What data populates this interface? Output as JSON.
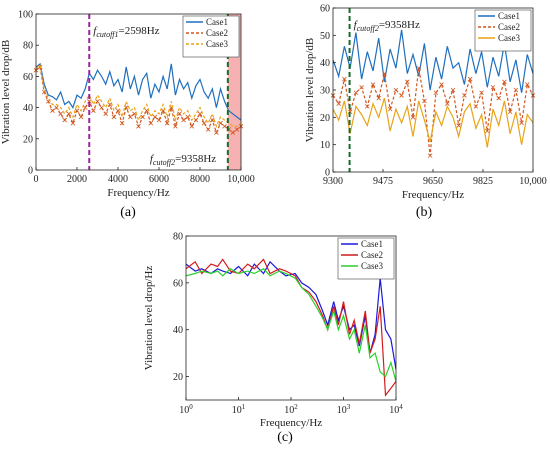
{
  "chart_data": [
    {
      "panel_label": "(a)",
      "type": "line",
      "xlabel": "Frequency/Hz",
      "ylabel": "Vibration level drop/dB",
      "xlim": [
        0,
        10000
      ],
      "ylim": [
        0,
        100
      ],
      "x_ticks": [
        0,
        2000,
        4000,
        6000,
        8000,
        10000
      ],
      "x_tick_labels": [
        "0",
        "2000",
        "4000",
        "6000",
        "8000",
        "10,000"
      ],
      "y_ticks": [
        0,
        20,
        40,
        60,
        80,
        100
      ],
      "legend": "top-right",
      "annotations": {
        "cutoff1": {
          "prefix": "f",
          "sub": "cutoff1",
          "suffix": "=2598Hz",
          "x": 2598
        },
        "cutoff2": {
          "prefix": "f",
          "sub": "cutoff2",
          "suffix": "=9358Hz",
          "x": 9358
        }
      },
      "shaded_region": [
        9358,
        10000
      ],
      "series": [
        {
          "name": "Case1",
          "color": "#1f6fbf",
          "style": "solid",
          "x": [
            0,
            200,
            400,
            600,
            800,
            1000,
            1200,
            1400,
            1600,
            1800,
            2000,
            2200,
            2400,
            2600,
            2800,
            3000,
            3200,
            3400,
            3600,
            3800,
            4000,
            4200,
            4400,
            4600,
            4800,
            5000,
            5200,
            5400,
            5600,
            5800,
            6000,
            6200,
            6400,
            6600,
            6800,
            7000,
            7200,
            7400,
            7600,
            7800,
            8000,
            8200,
            8400,
            8600,
            8800,
            9000,
            9200,
            9400,
            9600,
            9800,
            10000
          ],
          "y": [
            66,
            68,
            55,
            48,
            47,
            45,
            50,
            42,
            44,
            40,
            48,
            46,
            52,
            62,
            58,
            64,
            60,
            55,
            63,
            54,
            58,
            50,
            66,
            52,
            60,
            48,
            58,
            62,
            46,
            55,
            50,
            60,
            52,
            68,
            48,
            58,
            52,
            56,
            46,
            54,
            58,
            50,
            46,
            52,
            40,
            52,
            44,
            38,
            36,
            34,
            32
          ]
        },
        {
          "name": "Case2",
          "color": "#d2571f",
          "style": "dash-x",
          "x": [
            0,
            200,
            400,
            600,
            800,
            1000,
            1200,
            1400,
            1600,
            1800,
            2000,
            2200,
            2400,
            2600,
            2800,
            3000,
            3200,
            3400,
            3600,
            3800,
            4000,
            4200,
            4400,
            4600,
            4800,
            5000,
            5200,
            5400,
            5600,
            5800,
            6000,
            6200,
            6400,
            6600,
            6800,
            7000,
            7200,
            7400,
            7600,
            7800,
            8000,
            8200,
            8400,
            8600,
            8800,
            9000,
            9200,
            9400,
            9600,
            9800,
            10000
          ],
          "y": [
            64,
            66,
            50,
            44,
            38,
            40,
            36,
            32,
            36,
            30,
            38,
            34,
            40,
            44,
            38,
            44,
            40,
            36,
            42,
            34,
            38,
            30,
            40,
            34,
            36,
            28,
            34,
            38,
            30,
            34,
            32,
            38,
            30,
            40,
            28,
            36,
            32,
            34,
            28,
            32,
            36,
            30,
            26,
            32,
            24,
            30,
            28,
            26,
            24,
            26,
            28
          ]
        },
        {
          "name": "Case3",
          "color": "#e8a317",
          "style": "dashed",
          "x": [
            0,
            200,
            400,
            600,
            800,
            1000,
            1200,
            1400,
            1600,
            1800,
            2000,
            2200,
            2400,
            2600,
            2800,
            3000,
            3200,
            3400,
            3600,
            3800,
            4000,
            4200,
            4400,
            4600,
            4800,
            5000,
            5200,
            5400,
            5600,
            5800,
            6000,
            6200,
            6400,
            6600,
            6800,
            7000,
            7200,
            7400,
            7600,
            7800,
            8000,
            8200,
            8400,
            8600,
            8800,
            9000,
            9200,
            9400,
            9600,
            9800,
            10000
          ],
          "y": [
            65,
            67,
            52,
            46,
            42,
            42,
            40,
            36,
            40,
            34,
            42,
            38,
            44,
            48,
            42,
            48,
            44,
            40,
            46,
            38,
            42,
            34,
            44,
            38,
            40,
            32,
            38,
            42,
            34,
            38,
            36,
            42,
            34,
            44,
            32,
            40,
            36,
            38,
            32,
            36,
            40,
            34,
            30,
            36,
            28,
            34,
            32,
            30,
            28,
            28,
            30
          ]
        }
      ]
    },
    {
      "panel_label": "(b)",
      "type": "line",
      "xlabel": "Frequency/Hz",
      "ylabel": "Vibration level drop/dB",
      "xlim": [
        9300,
        10000
      ],
      "ylim": [
        0,
        60
      ],
      "x_ticks": [
        9300,
        9475,
        9650,
        9825,
        10000
      ],
      "x_tick_labels": [
        "9300",
        "9475",
        "9650",
        "9825",
        "10,000"
      ],
      "y_ticks": [
        0,
        10,
        20,
        30,
        40,
        50,
        60
      ],
      "legend": "top-right",
      "annotations": {
        "cutoff2": {
          "prefix": "f",
          "sub": "cutoff2",
          "suffix": "=9358Hz",
          "x": 9358
        }
      },
      "series": [
        {
          "name": "Case1",
          "color": "#1f6fbf",
          "style": "solid",
          "x": [
            9300,
            9320,
            9340,
            9360,
            9380,
            9400,
            9420,
            9440,
            9460,
            9480,
            9500,
            9520,
            9540,
            9560,
            9580,
            9600,
            9620,
            9640,
            9660,
            9680,
            9700,
            9720,
            9740,
            9760,
            9780,
            9800,
            9820,
            9840,
            9860,
            9880,
            9900,
            9920,
            9940,
            9960,
            9980,
            10000
          ],
          "y": [
            41,
            35,
            46,
            38,
            51,
            34,
            44,
            37,
            49,
            33,
            45,
            38,
            52,
            36,
            43,
            35,
            47,
            30,
            42,
            34,
            46,
            38,
            40,
            32,
            45,
            36,
            44,
            31,
            42,
            35,
            47,
            33,
            41,
            29,
            43,
            36
          ]
        },
        {
          "name": "Case2",
          "color": "#d2571f",
          "style": "dash-x",
          "x": [
            9300,
            9320,
            9340,
            9360,
            9380,
            9400,
            9420,
            9440,
            9460,
            9480,
            9500,
            9520,
            9540,
            9560,
            9580,
            9600,
            9620,
            9640,
            9660,
            9680,
            9700,
            9720,
            9740,
            9760,
            9780,
            9800,
            9820,
            9840,
            9860,
            9880,
            9900,
            9920,
            9940,
            9960,
            9980,
            10000
          ],
          "y": [
            28,
            25,
            34,
            22,
            29,
            31,
            24,
            32,
            27,
            36,
            23,
            30,
            28,
            33,
            20,
            38,
            26,
            6,
            29,
            32,
            25,
            30,
            17,
            28,
            34,
            24,
            29,
            15,
            31,
            27,
            33,
            22,
            30,
            18,
            32,
            28
          ]
        },
        {
          "name": "Case3",
          "color": "#e8a317",
          "style": "solid",
          "x": [
            9300,
            9320,
            9340,
            9360,
            9380,
            9400,
            9420,
            9440,
            9460,
            9480,
            9500,
            9520,
            9540,
            9560,
            9580,
            9600,
            9620,
            9640,
            9660,
            9680,
            9700,
            9720,
            9740,
            9760,
            9780,
            9800,
            9820,
            9840,
            9860,
            9880,
            9900,
            9920,
            9940,
            9960,
            9980,
            10000
          ],
          "y": [
            23,
            19,
            26,
            14,
            24,
            21,
            17,
            25,
            20,
            27,
            15,
            23,
            18,
            24,
            13,
            26,
            19,
            11,
            22,
            17,
            24,
            20,
            13,
            22,
            25,
            16,
            21,
            9,
            23,
            17,
            26,
            14,
            22,
            10,
            21,
            18
          ]
        }
      ]
    },
    {
      "panel_label": "(c)",
      "type": "line",
      "xscale": "log",
      "xlabel": "Frequency/Hz",
      "ylabel": "Vibration level drop/Hz",
      "xlim": [
        1,
        10000
      ],
      "ylim": [
        10,
        80
      ],
      "x_ticks": [
        1,
        10,
        100,
        1000,
        10000
      ],
      "x_tick_labels": [
        "10^0",
        "10^1",
        "10^2",
        "10^3",
        "10^4"
      ],
      "y_ticks": [
        20,
        40,
        60,
        80
      ],
      "legend": "top-right",
      "series": [
        {
          "name": "Case1",
          "color": "#1a1adb",
          "x": [
            1,
            1.5,
            2,
            3,
            4,
            5,
            7,
            10,
            15,
            20,
            30,
            40,
            60,
            80,
            120,
            160,
            220,
            300,
            400,
            500,
            650,
            800,
            1000,
            1300,
            1600,
            2000,
            2600,
            3200,
            4000,
            5000,
            6300,
            8000,
            10000
          ],
          "y": [
            68,
            65,
            66,
            64,
            66,
            65,
            64,
            67,
            63,
            68,
            64,
            69,
            65,
            63,
            64,
            60,
            58,
            55,
            48,
            42,
            52,
            44,
            50,
            40,
            42,
            33,
            46,
            30,
            38,
            62,
            40,
            36,
            23
          ]
        },
        {
          "name": "Case2",
          "color": "#d41c1c",
          "x": [
            1,
            1.5,
            2,
            3,
            4,
            5,
            7,
            10,
            15,
            20,
            30,
            40,
            60,
            80,
            120,
            160,
            220,
            300,
            400,
            500,
            650,
            800,
            1000,
            1300,
            1600,
            2000,
            2600,
            3200,
            4000,
            5000,
            6300,
            8000,
            10000
          ],
          "y": [
            66,
            69,
            64,
            68,
            67,
            70,
            65,
            64,
            68,
            66,
            70,
            64,
            66,
            65,
            63,
            58,
            56,
            52,
            46,
            40,
            50,
            42,
            52,
            38,
            44,
            34,
            48,
            30,
            36,
            50,
            12,
            15,
            18
          ]
        },
        {
          "name": "Case3",
          "color": "#2ad12a",
          "x": [
            1,
            1.5,
            2,
            3,
            4,
            5,
            7,
            10,
            15,
            20,
            30,
            40,
            60,
            80,
            120,
            160,
            220,
            300,
            400,
            500,
            650,
            800,
            1000,
            1300,
            1600,
            2000,
            2600,
            3200,
            4000,
            5000,
            6300,
            8000,
            10000
          ],
          "y": [
            63,
            64,
            65,
            64,
            65,
            63,
            66,
            64,
            65,
            64,
            66,
            63,
            65,
            64,
            62,
            58,
            55,
            50,
            45,
            40,
            48,
            40,
            46,
            36,
            40,
            30,
            42,
            28,
            30,
            22,
            20,
            26,
            18
          ]
        }
      ]
    }
  ]
}
